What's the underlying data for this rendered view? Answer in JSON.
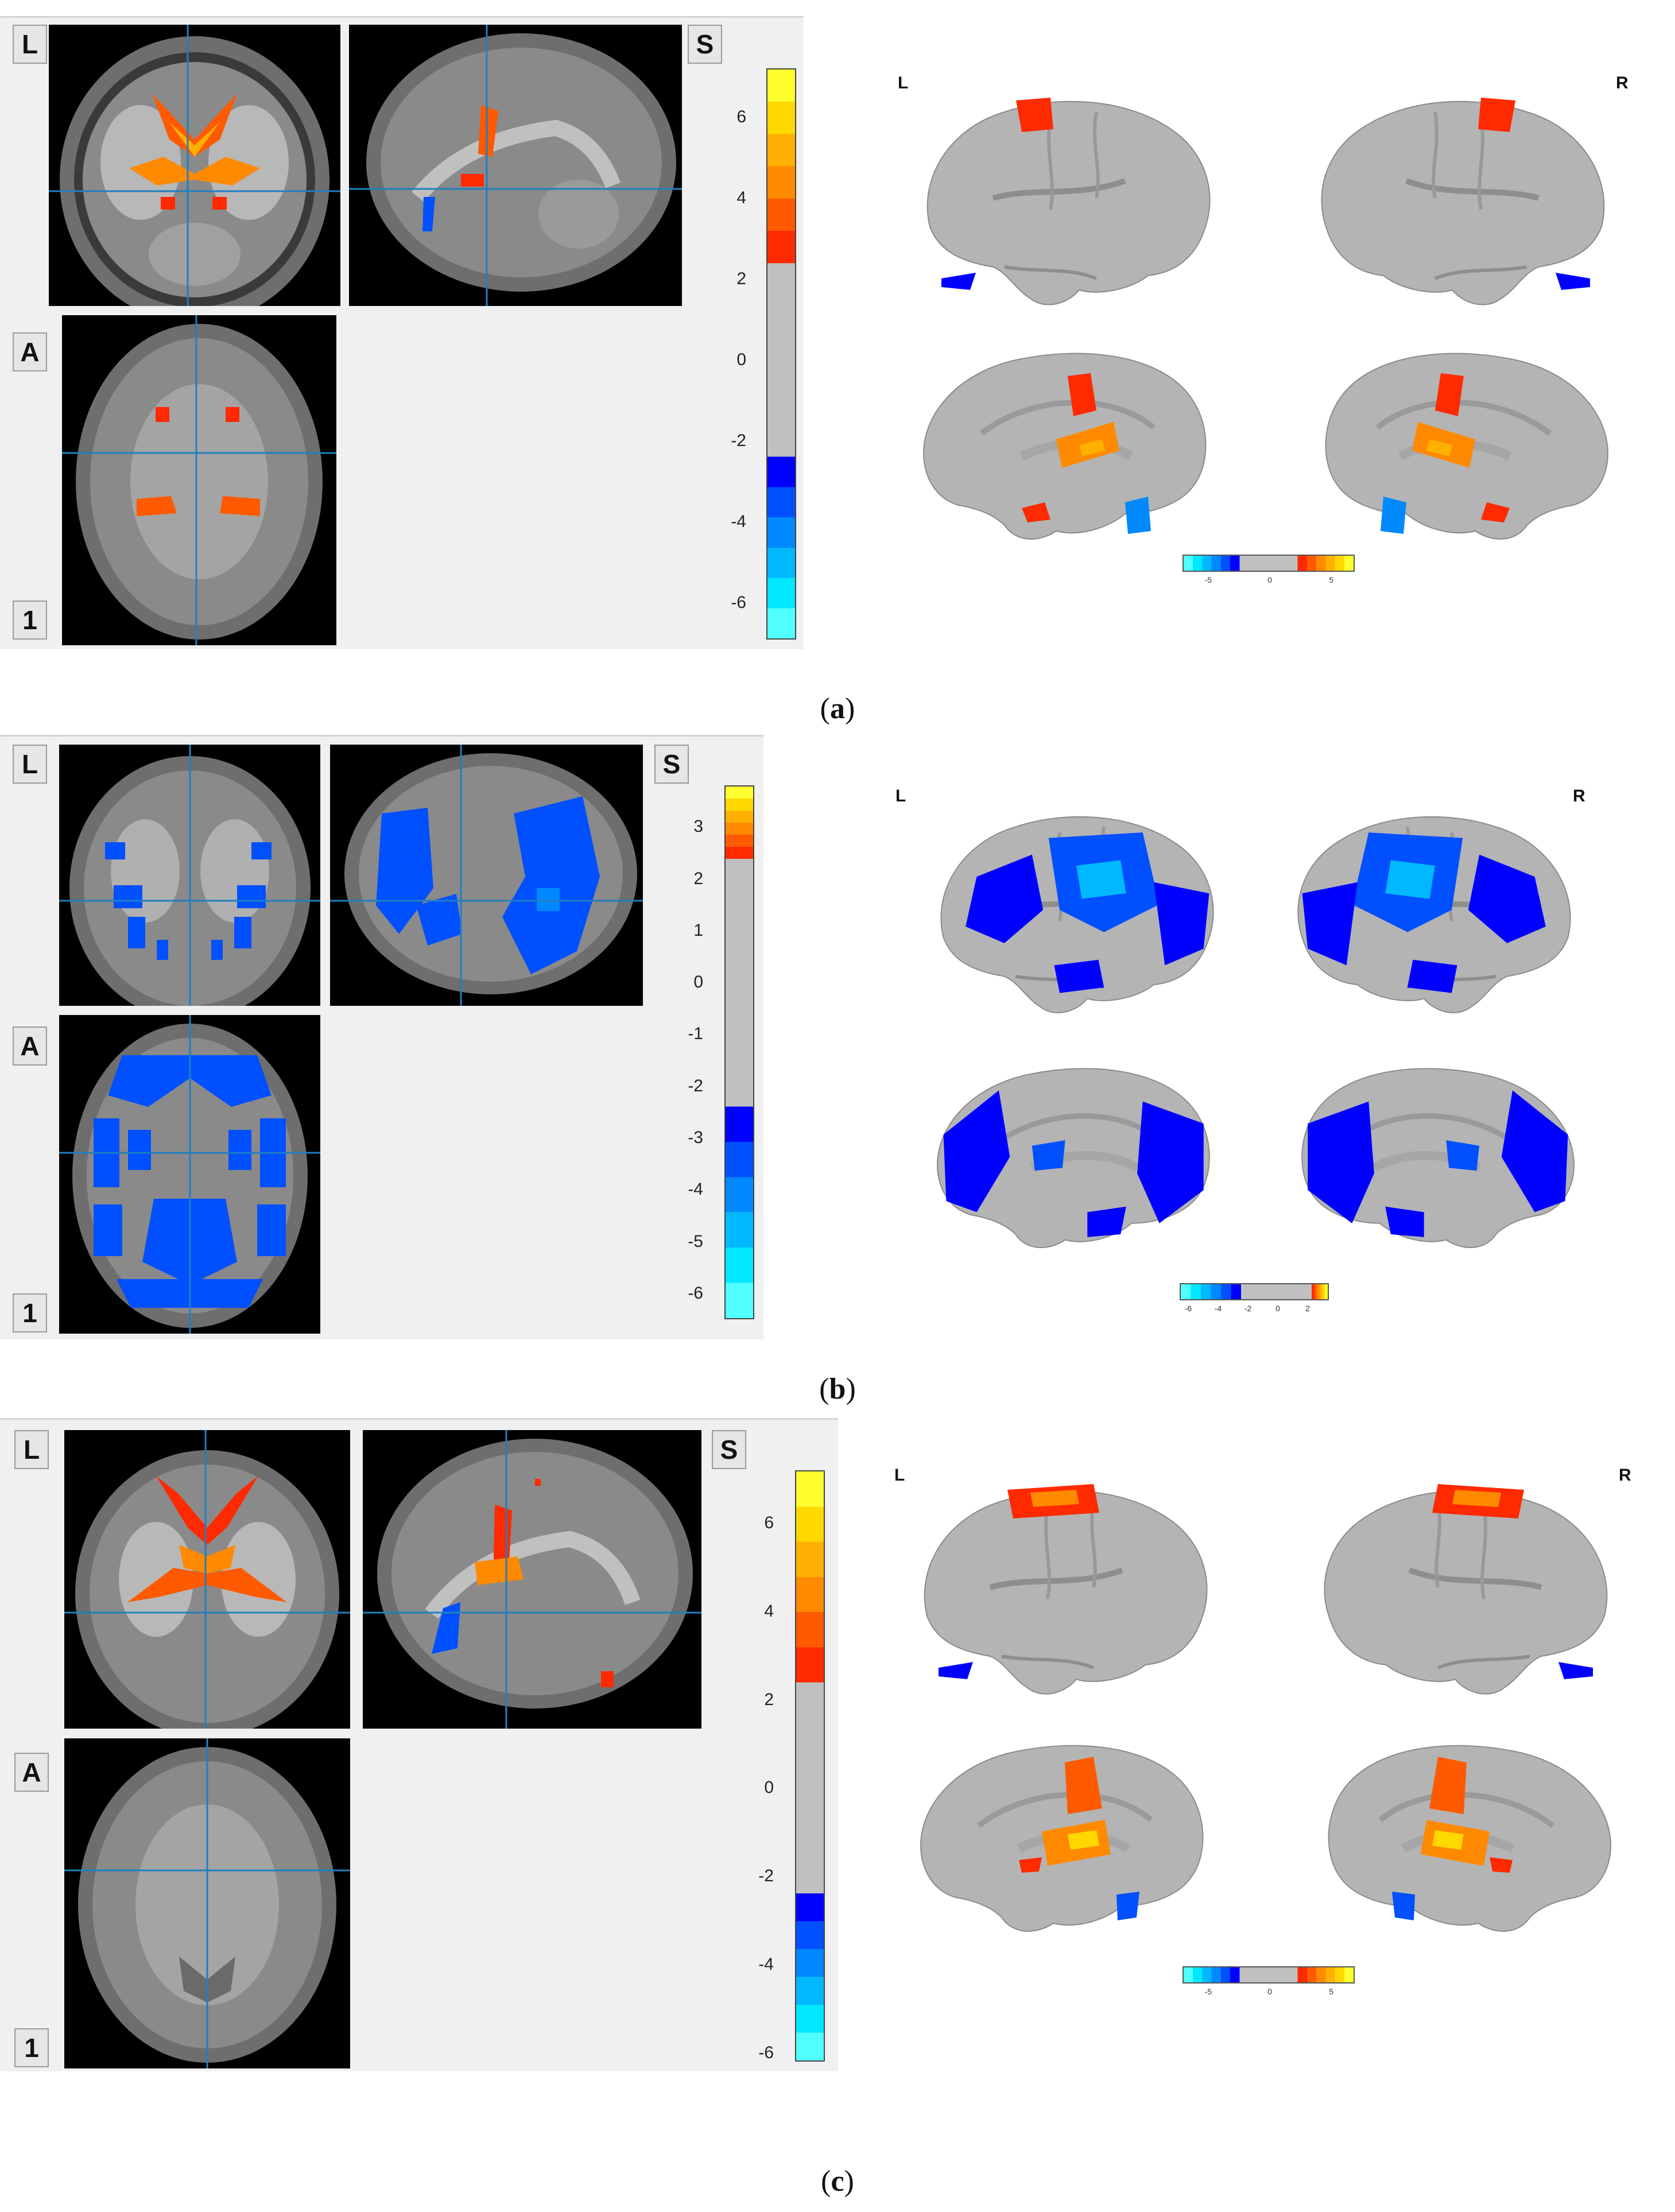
{
  "panels": [
    {
      "id": "a",
      "caption": {
        "open": "(",
        "letter": "a",
        "close": ")"
      },
      "viewer": {
        "buttons": {
          "left": "L",
          "superior": "S",
          "anterior": "A",
          "slice": "1"
        },
        "colorbar": {
          "ticks": [
            "6",
            "4",
            "2",
            "0",
            "-2",
            "-4",
            "-6"
          ],
          "vmin": -6.9,
          "vmax": 7.2
        }
      },
      "surface": {
        "left_label": "L",
        "right_label": "R",
        "mini_colorbar": {
          "ticks": [
            "-5",
            "0",
            "5"
          ],
          "vmin": -7,
          "vmax": 7
        }
      }
    },
    {
      "id": "b",
      "caption": {
        "open": "(",
        "letter": "b",
        "close": ")"
      },
      "viewer": {
        "buttons": {
          "left": "L",
          "superior": "S",
          "anterior": "A",
          "slice": "1"
        },
        "colorbar": {
          "ticks": [
            "3",
            "2",
            "1",
            "0",
            "-1",
            "-2",
            "-3",
            "-4",
            "-5",
            "-6"
          ],
          "vmin": -6.5,
          "vmax": 3.8
        }
      },
      "surface": {
        "left_label": "L",
        "right_label": "R",
        "mini_colorbar": {
          "ticks": [
            "-6",
            "-4",
            "-2",
            "0",
            "2"
          ],
          "vmin": -6.5,
          "vmax": 3.5
        }
      }
    },
    {
      "id": "c",
      "caption": {
        "open": "(",
        "letter": "c",
        "close": ")"
      },
      "viewer": {
        "buttons": {
          "left": "L",
          "superior": "S",
          "anterior": "A",
          "slice": "1"
        },
        "colorbar": {
          "ticks": [
            "6",
            "4",
            "2",
            "0",
            "-2",
            "-4",
            "-6"
          ],
          "vmin": -6.2,
          "vmax": 7.2
        }
      },
      "surface": {
        "left_label": "L",
        "right_label": "R",
        "mini_colorbar": {
          "ticks": [
            "-5",
            "0",
            "5"
          ],
          "vmin": -7,
          "vmax": 7
        }
      }
    }
  ],
  "colors": {
    "hot": [
      "#ff2a00",
      "#ff5a00",
      "#ff8a00",
      "#ffb000",
      "#ffd800",
      "#ffff30"
    ],
    "cool": [
      "#0000ff",
      "#0050ff",
      "#0088ff",
      "#00b8ff",
      "#00e8ff",
      "#50ffff"
    ],
    "brain_surface": "#b4b4b4",
    "viewer_bg": "#f0f0f0",
    "crosshair": "#1f7fc0"
  }
}
